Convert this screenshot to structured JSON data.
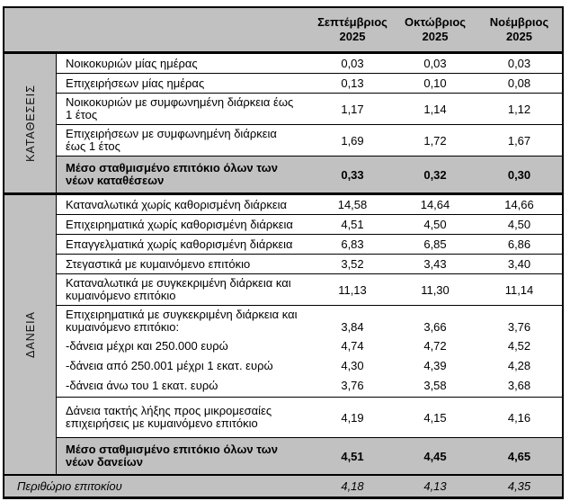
{
  "header": {
    "months": [
      "Σεπτέμβριος\n2025",
      "Οκτώβριος\n2025",
      "Νοέμβριος\n2025"
    ]
  },
  "sections": [
    {
      "side_label": "ΚΑΤΑΘΕΣΕΙΣ",
      "rows": [
        {
          "label": "Νοικοκυριών μίας ημέρας",
          "values": [
            "0,03",
            "0,03",
            "0,03"
          ]
        },
        {
          "label": "Επιχειρήσεων μίας ημέρας",
          "values": [
            "0,13",
            "0,10",
            "0,08"
          ]
        },
        {
          "label": "Νοικοκυριών με συμφωνημένη διάρκεια έως\n1 έτος",
          "values": [
            "1,17",
            "1,14",
            "1,12"
          ]
        },
        {
          "label": "Επιχειρήσεων με συμφωνημένη διάρκεια\nέως 1 έτος",
          "values": [
            "1,69",
            "1,72",
            "1,67"
          ]
        },
        {
          "label": "Μέσο σταθμισμένο επιτόκιο όλων των\nνέων καταθέσεων",
          "values": [
            "0,33",
            "0,32",
            "0,30"
          ],
          "emphasis": true
        }
      ]
    },
    {
      "side_label": "ΔΑΝΕΙΑ",
      "rows": [
        {
          "label": "Καταναλωτικά χωρίς καθορισμένη διάρκεια",
          "values": [
            "14,58",
            "14,64",
            "14,66"
          ]
        },
        {
          "label": "Επιχειρηματικά χωρίς καθορισμένη διάρκεια",
          "values": [
            "4,51",
            "4,50",
            "4,50"
          ]
        },
        {
          "label": "Επαγγελματικά χωρίς καθορισμένη διάρκεια",
          "values": [
            "6,83",
            "6,85",
            "6,86"
          ]
        },
        {
          "label": "Στεγαστικά με κυμαινόμενο επιτόκιο",
          "values": [
            "3,52",
            "3,43",
            "3,40"
          ]
        },
        {
          "label": "Καταναλωτικά με συγκεκριμένη διάρκεια και\nκυμαινόμενο επιτόκιο",
          "values": [
            "11,13",
            "11,30",
            "11,14"
          ]
        },
        {
          "label": "Επιχειρηματικά με συγκεκριμένη διάρκεια και\nκυμαινόμενο επιτόκιο:",
          "values": [
            "3,84",
            "3,66",
            "3,76"
          ],
          "subitems": [
            {
              "label": "-δάνεια μέχρι και 250.000 ευρώ",
              "values": [
                "4,74",
                "4,72",
                "4,52"
              ]
            },
            {
              "label": "-δάνεια από 250.001 μέχρι 1 εκατ. ευρώ",
              "values": [
                "4,30",
                "4,39",
                "4,28"
              ]
            },
            {
              "label": "-δάνεια άνω του 1 εκατ. ευρώ",
              "values": [
                "3,76",
                "3,58",
                "3,68"
              ]
            }
          ]
        },
        {
          "label": "Δάνεια τακτής λήξης προς μικρομεσαίες\nεπιχειρήσεις με κυμαινόμενο επιτόκιο",
          "values": [
            "4,19",
            "4,15",
            "4,16"
          ]
        },
        {
          "label": "Μέσο σταθμισμένο επιτόκιο όλων των\nνέων δανείων",
          "values": [
            "4,51",
            "4,45",
            "4,65"
          ],
          "emphasis": true
        }
      ]
    }
  ],
  "footer": {
    "label": "Περιθώριο επιτοκίου",
    "values": [
      "4,18",
      "4,13",
      "4,35"
    ]
  },
  "colors": {
    "table_gray": "#c1c1c1",
    "border": "#000000",
    "text": "#000000"
  }
}
